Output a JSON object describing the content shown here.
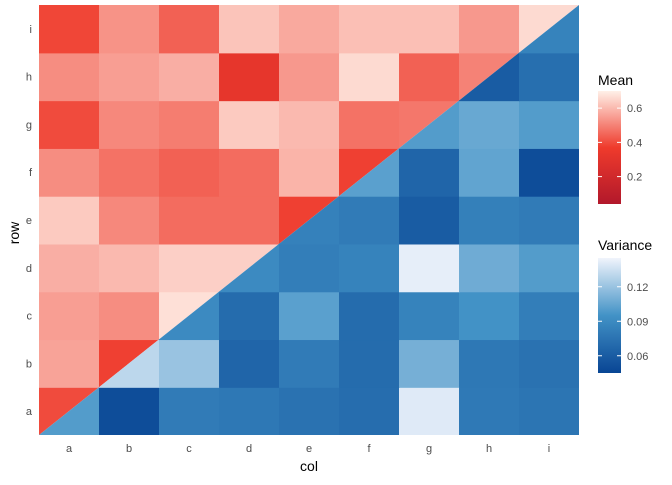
{
  "chart_data": {
    "type": "heatmap",
    "title": "",
    "xlabel": "col",
    "ylabel": "row",
    "x_categories": [
      "a",
      "b",
      "c",
      "d",
      "e",
      "f",
      "g",
      "h",
      "i"
    ],
    "y_categories": [
      "a",
      "b",
      "c",
      "d",
      "e",
      "f",
      "g",
      "h",
      "i"
    ],
    "grid": false,
    "legend_placement": "right",
    "mean": {
      "name": "Mean",
      "scale_min": 0.04,
      "scale_max": 0.7,
      "color_low": "#b2182b",
      "color_mid": "#ef3b2c",
      "color_high": "#fff0e8",
      "ticks": [
        0.2,
        0.4,
        0.6
      ],
      "tick_labels": [
        "0.2",
        "0.4",
        "0.6"
      ],
      "values": [
        [
          0.4,
          0.45,
          0.5,
          0.48,
          0.46,
          0.47,
          0.48,
          0.5,
          0.51
        ],
        [
          0.56,
          0.38,
          0.55,
          0.55,
          0.54,
          0.53,
          0.52,
          0.51,
          0.5
        ],
        [
          0.55,
          0.52,
          0.67,
          0.6,
          0.58,
          0.57,
          0.56,
          0.55,
          0.54
        ],
        [
          0.58,
          0.6,
          0.64,
          0.64,
          0.58,
          0.57,
          0.56,
          0.55,
          0.54
        ],
        [
          0.63,
          0.51,
          0.46,
          0.46,
          0.38,
          0.5,
          0.5,
          0.5,
          0.5
        ],
        [
          0.52,
          0.47,
          0.44,
          0.46,
          0.59,
          0.38,
          0.5,
          0.5,
          0.5
        ],
        [
          0.4,
          0.51,
          0.49,
          0.63,
          0.6,
          0.47,
          0.48,
          0.5,
          0.5
        ],
        [
          0.52,
          0.55,
          0.58,
          0.32,
          0.54,
          0.66,
          0.44,
          0.5,
          0.5
        ],
        [
          0.39,
          0.53,
          0.44,
          0.62,
          0.57,
          0.61,
          0.61,
          0.54,
          0.66
        ]
      ]
    },
    "variance": {
      "name": "Variance",
      "scale_min": 0.045,
      "scale_max": 0.145,
      "color_low": "#084594",
      "color_mid": "#4292c6",
      "color_high": "#f0f4fc",
      "ticks": [
        0.06,
        0.09,
        0.12
      ],
      "tick_labels": [
        "0.06",
        "0.09",
        "0.12"
      ],
      "values": [
        [
          0.1,
          0.05,
          0.08,
          0.078,
          0.074,
          0.071,
          0.14,
          0.079,
          0.076
        ],
        [
          0.1,
          0.13,
          0.12,
          0.066,
          0.08,
          0.07,
          0.11,
          0.078,
          0.074
        ],
        [
          0.1,
          0.1,
          0.09,
          0.07,
          0.102,
          0.07,
          0.085,
          0.095,
          0.082
        ],
        [
          0.1,
          0.1,
          0.1,
          0.09,
          0.082,
          0.085,
          0.142,
          0.108,
          0.1
        ],
        [
          0.1,
          0.1,
          0.1,
          0.09,
          0.084,
          0.08,
          0.06,
          0.083,
          0.08
        ],
        [
          0.1,
          0.1,
          0.1,
          0.1,
          0.1,
          0.102,
          0.066,
          0.104,
          0.05
        ],
        [
          0.1,
          0.1,
          0.1,
          0.1,
          0.1,
          0.1,
          0.1,
          0.106,
          0.1
        ],
        [
          0.1,
          0.1,
          0.1,
          0.1,
          0.1,
          0.1,
          0.1,
          0.06,
          0.072
        ],
        [
          0.1,
          0.1,
          0.1,
          0.1,
          0.1,
          0.1,
          0.1,
          0.1,
          0.085
        ]
      ]
    }
  }
}
